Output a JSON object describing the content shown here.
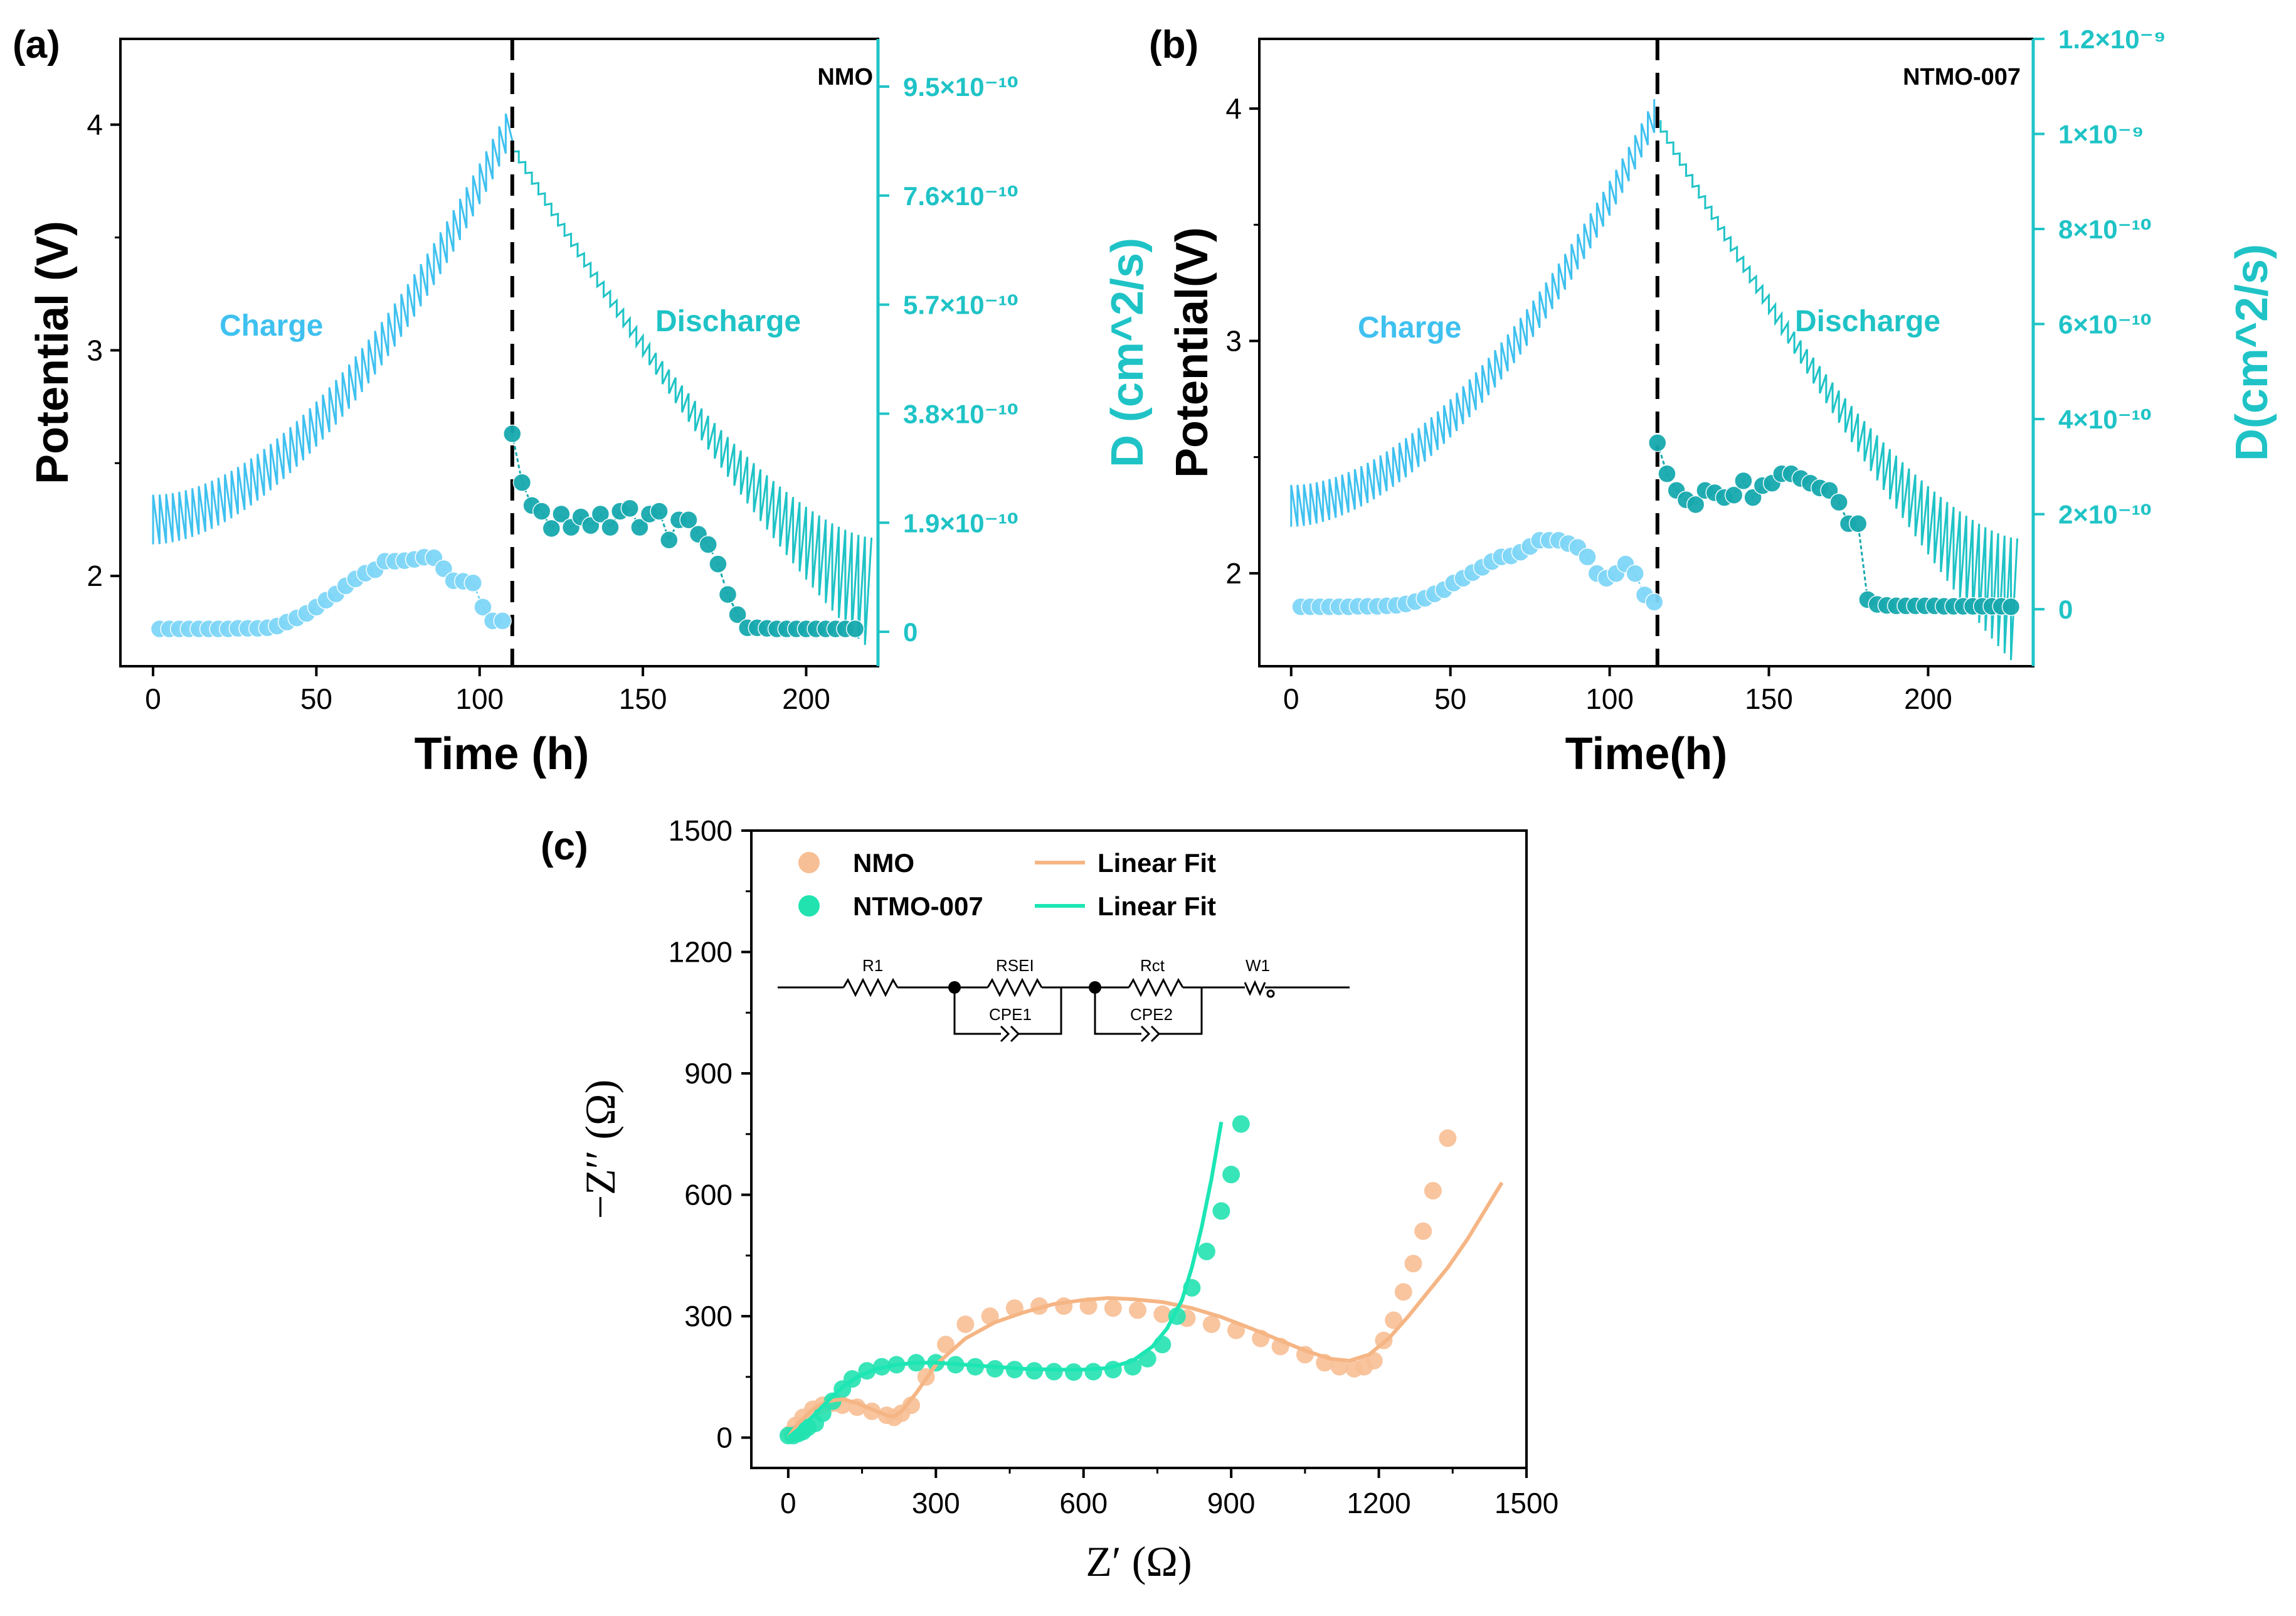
{
  "colors": {
    "axis": "#000000",
    "charge": "#3FC1F0",
    "charge_marker": "#7FD6F7",
    "discharge": "#1FC3C6",
    "discharge_marker": "#17A9AE",
    "right_axis": "#1FC3C6",
    "nmo": "#F7BF95",
    "nmo_line": "#F5B584",
    "ntmo": "#22E2B0",
    "ntmo_line": "#1CE6B4"
  },
  "chart_data": [
    {
      "panel_label": "(a)",
      "type": "line",
      "sample": "NMO",
      "xlabel": "Time (h)",
      "ylabel": "Potential (V)",
      "y2label": "D (cm^2/s)",
      "xlim": [
        -10,
        222
      ],
      "ylim": [
        1.6,
        4.38
      ],
      "y2lim": [
        -6e-11,
        1.033e-09
      ],
      "xticks": [
        "0",
        "50",
        "100",
        "150",
        "200"
      ],
      "xtick_values": [
        0,
        50,
        100,
        150,
        200
      ],
      "yticks": [
        "2",
        "3",
        "4"
      ],
      "ytick_values": [
        2,
        3,
        4
      ],
      "y2ticks": [
        "0",
        "1.9×10⁻¹⁰",
        "3.8×10⁻¹⁰",
        "5.7×10⁻¹⁰",
        "7.6×10⁻¹⁰",
        "9.5×10⁻¹⁰"
      ],
      "y2tick_values": [
        0,
        1.9e-10,
        3.8e-10,
        5.7e-10,
        7.6e-10,
        9.5e-10
      ],
      "divider_x": 110,
      "annotations": {
        "charge": "Charge",
        "discharge": "Discharge"
      },
      "gitt": {
        "t_end": 220,
        "t_switch": 110,
        "v_start": 2.14,
        "v_peak": 3.93,
        "v_end": 2.17,
        "pulses": 110,
        "charge_pulse": 0.22,
        "discharge_pulse_max": 0.45
      },
      "series": [
        {
          "name": "D charge",
          "axis": "y2",
          "x": [
            2,
            5,
            8,
            11,
            14,
            17,
            20,
            23,
            26,
            29,
            32,
            35,
            38,
            41,
            44,
            47,
            50,
            53,
            56,
            59,
            62,
            65,
            68,
            71,
            74,
            77,
            80,
            83,
            86,
            89,
            92,
            95,
            98,
            101,
            104,
            107
          ],
          "values": [
            0.05,
            0.05,
            0.05,
            0.05,
            0.05,
            0.05,
            0.05,
            0.05,
            0.06,
            0.06,
            0.06,
            0.07,
            0.1,
            0.17,
            0.24,
            0.32,
            0.43,
            0.55,
            0.66,
            0.8,
            0.92,
            1.02,
            1.08,
            1.23,
            1.23,
            1.24,
            1.26,
            1.3,
            1.29,
            1.1,
            0.89,
            0.88,
            0.85,
            0.43,
            0.19,
            0.19
          ]
        },
        {
          "name": "D discharge",
          "axis": "y2",
          "x": [
            110,
            113,
            116,
            119,
            122,
            125,
            128,
            131,
            134,
            137,
            140,
            143,
            146,
            149,
            152,
            155,
            158,
            161,
            164,
            167,
            170,
            173,
            176,
            179,
            182,
            185,
            188,
            191,
            194,
            197,
            200,
            203,
            206,
            209,
            212,
            215
          ],
          "values": [
            3.45,
            2.6,
            2.2,
            2.1,
            1.8,
            2.05,
            1.82,
            2.0,
            1.85,
            2.05,
            1.82,
            2.1,
            2.15,
            1.82,
            2.05,
            2.1,
            1.6,
            1.95,
            1.95,
            1.7,
            1.52,
            1.18,
            0.65,
            0.3,
            0.07,
            0.07,
            0.06,
            0.05,
            0.05,
            0.05,
            0.05,
            0.05,
            0.05,
            0.05,
            0.05,
            0.05
          ]
        }
      ]
    },
    {
      "panel_label": "(b)",
      "type": "line",
      "sample": "NTMO-007",
      "xlabel": "Time(h)",
      "ylabel": "Potential(V)",
      "y2label": "D(cm^2/s)",
      "xlim": [
        -10,
        233
      ],
      "ylim": [
        1.6,
        4.3
      ],
      "y2lim": [
        -1.2e-10,
        1.2e-09
      ],
      "xticks": [
        "0",
        "50",
        "100",
        "150",
        "200"
      ],
      "xtick_values": [
        0,
        50,
        100,
        150,
        200
      ],
      "yticks": [
        "2",
        "3",
        "4"
      ],
      "ytick_values": [
        2,
        3,
        4
      ],
      "y2ticks": [
        "0",
        "2×10⁻¹⁰",
        "4×10⁻¹⁰",
        "6×10⁻¹⁰",
        "8×10⁻¹⁰",
        "1×10⁻⁹",
        "1.2×10⁻⁹"
      ],
      "y2tick_values": [
        0,
        2e-10,
        4e-10,
        6e-10,
        8e-10,
        1e-09,
        1.2e-09
      ],
      "divider_x": 115,
      "annotations": {
        "charge": "Charge",
        "discharge": "Discharge"
      },
      "gitt": {
        "t_end": 228,
        "t_switch": 115,
        "v_start": 2.2,
        "v_peak": 3.95,
        "v_end": 2.15,
        "pulses": 114,
        "charge_pulse": 0.18,
        "discharge_pulse_max": 0.5
      },
      "series": [
        {
          "name": "D charge",
          "axis": "y2",
          "x": [
            3,
            6,
            9,
            12,
            15,
            18,
            21,
            24,
            27,
            30,
            33,
            36,
            39,
            42,
            45,
            48,
            51,
            54,
            57,
            60,
            63,
            66,
            69,
            72,
            75,
            78,
            81,
            84,
            87,
            90,
            93,
            96,
            99,
            102,
            105,
            108,
            111,
            114
          ],
          "values": [
            0.05,
            0.05,
            0.05,
            0.05,
            0.05,
            0.05,
            0.06,
            0.06,
            0.06,
            0.07,
            0.08,
            0.11,
            0.16,
            0.23,
            0.32,
            0.41,
            0.55,
            0.65,
            0.77,
            0.88,
            1.0,
            1.1,
            1.12,
            1.2,
            1.32,
            1.45,
            1.45,
            1.45,
            1.38,
            1.3,
            1.1,
            0.75,
            0.65,
            0.75,
            0.95,
            0.75,
            0.3,
            0.15
          ]
        },
        {
          "name": "D discharge",
          "axis": "y2",
          "x": [
            115,
            118,
            121,
            124,
            127,
            130,
            133,
            136,
            139,
            142,
            145,
            148,
            151,
            154,
            157,
            160,
            163,
            166,
            169,
            172,
            175,
            178,
            181,
            184,
            187,
            190,
            193,
            196,
            199,
            202,
            205,
            208,
            211,
            214,
            217,
            220,
            223,
            226
          ],
          "values": [
            3.5,
            2.85,
            2.5,
            2.3,
            2.2,
            2.5,
            2.45,
            2.35,
            2.4,
            2.7,
            2.35,
            2.6,
            2.65,
            2.85,
            2.85,
            2.75,
            2.65,
            2.55,
            2.5,
            2.25,
            1.8,
            1.8,
            0.2,
            0.1,
            0.08,
            0.07,
            0.07,
            0.07,
            0.07,
            0.07,
            0.06,
            0.06,
            0.06,
            0.06,
            0.06,
            0.06,
            0.06,
            0.05
          ]
        }
      ]
    },
    {
      "panel_label": "(c)",
      "type": "scatter",
      "xlabel": "Z′ (Ω)",
      "ylabel": "−Z′′ (Ω)",
      "xlim": [
        -75,
        1500
      ],
      "ylim": [
        -75,
        1500
      ],
      "xticks": [
        "0",
        "300",
        "600",
        "900",
        "1200",
        "1500"
      ],
      "xtick_values": [
        0,
        300,
        600,
        900,
        1200,
        1500
      ],
      "yticks": [
        "0",
        "300",
        "600",
        "900",
        "1200",
        "1500"
      ],
      "ytick_values": [
        0,
        300,
        600,
        900,
        1200,
        1500
      ],
      "legend": {
        "position": "top-left",
        "entries": [
          "NMO",
          "NTMO-007",
          "Linear Fit",
          "Linear Fit"
        ]
      },
      "circuit_labels": [
        "R1",
        "RSEI",
        "CPE1",
        "Rct",
        "CPE2",
        "W1"
      ],
      "series": [
        {
          "name": "NMO",
          "kind": "points",
          "x": [
            5,
            15,
            30,
            50,
            70,
            90,
            110,
            140,
            170,
            200,
            215,
            230,
            250,
            280,
            320,
            360,
            410,
            460,
            510,
            560,
            610,
            660,
            710,
            760,
            810,
            860,
            910,
            960,
            1000,
            1050,
            1090,
            1120,
            1150,
            1170,
            1190,
            1210,
            1230,
            1250,
            1270,
            1290,
            1310,
            1340
          ],
          "y": [
            10,
            30,
            50,
            70,
            80,
            85,
            80,
            75,
            65,
            55,
            50,
            60,
            80,
            150,
            230,
            280,
            300,
            320,
            325,
            325,
            325,
            320,
            315,
            305,
            295,
            280,
            265,
            245,
            225,
            205,
            185,
            175,
            170,
            175,
            190,
            240,
            290,
            360,
            430,
            510,
            610,
            740
          ]
        },
        {
          "name": "NTMO-007",
          "kind": "points",
          "x": [
            0,
            10,
            20,
            30,
            40,
            55,
            70,
            90,
            110,
            130,
            160,
            190,
            220,
            260,
            300,
            340,
            380,
            420,
            460,
            500,
            540,
            580,
            620,
            660,
            700,
            730,
            760,
            790,
            820,
            850,
            880,
            900,
            920
          ],
          "y": [
            5,
            5,
            10,
            15,
            25,
            35,
            60,
            90,
            120,
            145,
            165,
            175,
            180,
            185,
            185,
            180,
            175,
            170,
            168,
            165,
            163,
            162,
            163,
            168,
            175,
            195,
            230,
            300,
            370,
            460,
            560,
            650,
            775
          ]
        },
        {
          "name": "Linear Fit (NMO)",
          "kind": "line",
          "x": [
            0,
            20,
            50,
            80,
            110,
            140,
            170,
            200,
            215,
            230,
            260,
            300,
            360,
            420,
            480,
            540,
            600,
            650,
            700,
            760,
            820,
            880,
            940,
            1000,
            1050,
            1100,
            1140,
            1180,
            1220,
            1260,
            1300,
            1340,
            1380,
            1420,
            1450
          ],
          "y": [
            0,
            35,
            70,
            90,
            95,
            85,
            70,
            55,
            52,
            65,
            110,
            180,
            245,
            285,
            310,
            330,
            340,
            345,
            342,
            335,
            320,
            298,
            270,
            240,
            215,
            195,
            190,
            205,
            245,
            300,
            360,
            420,
            490,
            570,
            630
          ]
        },
        {
          "name": "Linear Fit (NTMO-007)",
          "kind": "line",
          "x": [
            0,
            20,
            40,
            60,
            80,
            110,
            140,
            180,
            220,
            260,
            300,
            360,
            420,
            480,
            540,
            600,
            650,
            700,
            740,
            770,
            800,
            820,
            840,
            860,
            880
          ],
          "y": [
            0,
            20,
            40,
            65,
            90,
            125,
            150,
            170,
            180,
            185,
            185,
            180,
            175,
            170,
            168,
            168,
            172,
            190,
            225,
            270,
            340,
            420,
            520,
            640,
            780
          ]
        }
      ]
    }
  ]
}
